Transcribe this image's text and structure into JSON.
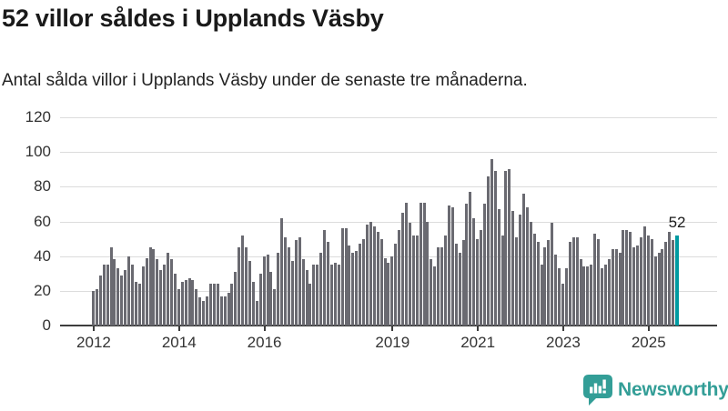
{
  "header": {
    "title": "52 villor såldes i Upplands Väsby",
    "subtitle": "Antal sålda villor i Upplands Väsby under de senaste tre månaderna."
  },
  "chart_data": {
    "type": "bar",
    "title": "52 villor såldes i Upplands Väsby",
    "xlabel": "",
    "ylabel": "",
    "ylim": [
      0,
      120
    ],
    "yticks": [
      0,
      20,
      40,
      60,
      80,
      100,
      120
    ],
    "grid": "horizontal",
    "legend": "none",
    "start_month": "2012-01",
    "end_month": "2025-09",
    "bar_color": "#6a6a71",
    "values": [
      20,
      21,
      29,
      35,
      35,
      45,
      38,
      33,
      29,
      32,
      40,
      35,
      25,
      24,
      34,
      39,
      45,
      44,
      38,
      32,
      35,
      42,
      38,
      30,
      21,
      25,
      26,
      27,
      26,
      21,
      16,
      14,
      17,
      24,
      24,
      24,
      17,
      17,
      19,
      24,
      31,
      45,
      52,
      45,
      37,
      25,
      14,
      30,
      40,
      41,
      31,
      21,
      42,
      62,
      51,
      45,
      37,
      49,
      51,
      38,
      32,
      24,
      35,
      35,
      42,
      55,
      48,
      35,
      36,
      35,
      56,
      56,
      46,
      42,
      43,
      47,
      50,
      58,
      60,
      57,
      54,
      50,
      39,
      36,
      40,
      47,
      55,
      65,
      71,
      59,
      52,
      52,
      71,
      71,
      60,
      38,
      34,
      45,
      45,
      52,
      69,
      68,
      47,
      42,
      49,
      70,
      77,
      62,
      50,
      55,
      70,
      86,
      96,
      89,
      67,
      52,
      89,
      90,
      66,
      51,
      64,
      76,
      68,
      60,
      53,
      48,
      35,
      45,
      49,
      59,
      41,
      33,
      24,
      33,
      48,
      51,
      51,
      38,
      34,
      34,
      35,
      53,
      50,
      33,
      35,
      38,
      44,
      44,
      42,
      55,
      55,
      54,
      45,
      46,
      51,
      57,
      52,
      50,
      40,
      42,
      44,
      48,
      54,
      49,
      52
    ],
    "highlight": {
      "index": 164,
      "value": 52,
      "label": "52",
      "color": "#009aa1"
    },
    "xticks": [
      {
        "label": "2012",
        "month_index": 0
      },
      {
        "label": "2014",
        "month_index": 24
      },
      {
        "label": "2016",
        "month_index": 48
      },
      {
        "label": "2019",
        "month_index": 84
      },
      {
        "label": "2021",
        "month_index": 108
      },
      {
        "label": "2023",
        "month_index": 132
      },
      {
        "label": "2025",
        "month_index": 156
      }
    ]
  },
  "footer": {
    "brand": "Newsworthy",
    "brand_color": "#339e97",
    "logo_icon": "newsworthy-bubble-chart-icon"
  }
}
